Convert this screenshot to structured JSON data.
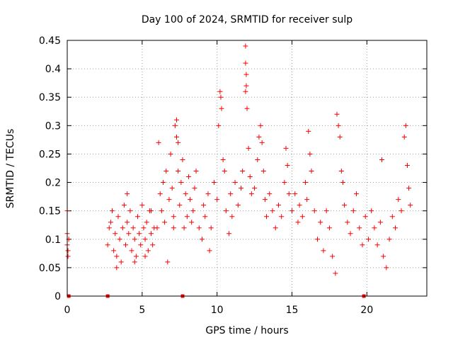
{
  "chart_data": {
    "type": "scatter",
    "title": "Day 100 of 2024, SRMTID for receiver sulp",
    "xlabel": "GPS time / hours",
    "ylabel": "SRMTID / TECUs",
    "xlim": [
      0,
      24
    ],
    "ylim": [
      0,
      0.45
    ],
    "xticks": [
      0,
      5,
      10,
      15,
      20
    ],
    "xtick_labels": [
      "0",
      "5",
      "10",
      "15",
      "20"
    ],
    "yticks": [
      0,
      0.05,
      0.1,
      0.15,
      0.2,
      0.25,
      0.3,
      0.35,
      0.4,
      0.45
    ],
    "ytick_labels": [
      "0",
      "0.05",
      "0.1",
      "0.15",
      "0.2",
      "0.25",
      "0.3",
      "0.35",
      "0.4",
      "0.45"
    ],
    "grid": true,
    "marker": "+",
    "color": "#ff0000",
    "zero_markers_x": [
      0.1,
      2.7,
      7.7,
      19.8
    ],
    "series": [
      {
        "name": "SRMTID",
        "points": [
          [
            0.0,
            0.15
          ],
          [
            0.0,
            0.11
          ],
          [
            0.0,
            0.09
          ],
          [
            0.05,
            0.08
          ],
          [
            0.05,
            0.07
          ],
          [
            0.1,
            0.1
          ],
          [
            2.7,
            0.09
          ],
          [
            2.8,
            0.12
          ],
          [
            2.9,
            0.13
          ],
          [
            3.0,
            0.15
          ],
          [
            3.1,
            0.08
          ],
          [
            3.2,
            0.11
          ],
          [
            3.3,
            0.07
          ],
          [
            3.4,
            0.14
          ],
          [
            3.5,
            0.1
          ],
          [
            3.6,
            0.06
          ],
          [
            3.7,
            0.12
          ],
          [
            3.8,
            0.16
          ],
          [
            3.9,
            0.09
          ],
          [
            4.0,
            0.13
          ],
          [
            4.1,
            0.11
          ],
          [
            4.2,
            0.15
          ],
          [
            4.3,
            0.08
          ],
          [
            4.4,
            0.12
          ],
          [
            4.5,
            0.1
          ],
          [
            4.6,
            0.07
          ],
          [
            4.7,
            0.14
          ],
          [
            4.8,
            0.11
          ],
          [
            4.9,
            0.09
          ],
          [
            5.0,
            0.16
          ],
          [
            5.1,
            0.12
          ],
          [
            5.2,
            0.1
          ],
          [
            5.3,
            0.13
          ],
          [
            5.4,
            0.08
          ],
          [
            5.5,
            0.15
          ],
          [
            5.6,
            0.11
          ],
          [
            5.7,
            0.09
          ],
          [
            5.8,
            0.12
          ],
          [
            3.3,
            0.05
          ],
          [
            4.0,
            0.18
          ],
          [
            4.5,
            0.06
          ],
          [
            5.2,
            0.07
          ],
          [
            5.6,
            0.15
          ],
          [
            6.0,
            0.12
          ],
          [
            6.1,
            0.27
          ],
          [
            6.2,
            0.18
          ],
          [
            6.3,
            0.15
          ],
          [
            6.4,
            0.2
          ],
          [
            6.5,
            0.13
          ],
          [
            6.6,
            0.22
          ],
          [
            6.7,
            0.06
          ],
          [
            6.8,
            0.17
          ],
          [
            6.9,
            0.25
          ],
          [
            7.0,
            0.19
          ],
          [
            7.1,
            0.14
          ],
          [
            7.2,
            0.3
          ],
          [
            7.3,
            0.31
          ],
          [
            7.4,
            0.22
          ],
          [
            7.5,
            0.16
          ],
          [
            7.6,
            0.2
          ],
          [
            7.7,
            0.24
          ],
          [
            7.8,
            0.12
          ],
          [
            7.9,
            0.18
          ],
          [
            8.0,
            0.14
          ],
          [
            8.1,
            0.21
          ],
          [
            8.2,
            0.17
          ],
          [
            8.3,
            0.13
          ],
          [
            8.5,
            0.19
          ],
          [
            8.6,
            0.22
          ],
          [
            8.8,
            0.12
          ],
          [
            9.0,
            0.1
          ],
          [
            9.2,
            0.14
          ],
          [
            9.4,
            0.18
          ],
          [
            9.6,
            0.12
          ],
          [
            9.8,
            0.2
          ],
          [
            10.0,
            0.17
          ],
          [
            7.3,
            0.28
          ],
          [
            7.4,
            0.27
          ],
          [
            7.1,
            0.12
          ],
          [
            8.4,
            0.15
          ],
          [
            9.1,
            0.16
          ],
          [
            9.5,
            0.08
          ],
          [
            10.1,
            0.3
          ],
          [
            10.2,
            0.36
          ],
          [
            10.25,
            0.35
          ],
          [
            10.3,
            0.33
          ],
          [
            10.4,
            0.24
          ],
          [
            10.5,
            0.22
          ],
          [
            10.6,
            0.15
          ],
          [
            10.8,
            0.11
          ],
          [
            10.9,
            0.18
          ],
          [
            11.0,
            0.14
          ],
          [
            11.2,
            0.2
          ],
          [
            11.4,
            0.16
          ],
          [
            11.6,
            0.19
          ],
          [
            11.7,
            0.22
          ],
          [
            11.9,
            0.44
          ],
          [
            11.9,
            0.41
          ],
          [
            11.95,
            0.39
          ],
          [
            11.95,
            0.37
          ],
          [
            11.9,
            0.36
          ],
          [
            12.0,
            0.33
          ],
          [
            12.1,
            0.26
          ],
          [
            12.2,
            0.21
          ],
          [
            12.3,
            0.18
          ],
          [
            12.5,
            0.19
          ],
          [
            12.7,
            0.24
          ],
          [
            12.8,
            0.28
          ],
          [
            12.9,
            0.3
          ],
          [
            13.0,
            0.27
          ],
          [
            13.1,
            0.22
          ],
          [
            13.2,
            0.17
          ],
          [
            13.3,
            0.14
          ],
          [
            13.5,
            0.18
          ],
          [
            13.7,
            0.15
          ],
          [
            13.9,
            0.12
          ],
          [
            14.1,
            0.16
          ],
          [
            14.3,
            0.14
          ],
          [
            14.5,
            0.2
          ],
          [
            14.6,
            0.26
          ],
          [
            14.7,
            0.23
          ],
          [
            14.8,
            0.18
          ],
          [
            15.0,
            0.15
          ],
          [
            15.2,
            0.18
          ],
          [
            15.4,
            0.13
          ],
          [
            15.5,
            0.16
          ],
          [
            15.7,
            0.14
          ],
          [
            15.9,
            0.2
          ],
          [
            16.0,
            0.17
          ],
          [
            16.1,
            0.29
          ],
          [
            16.2,
            0.25
          ],
          [
            16.3,
            0.22
          ],
          [
            16.5,
            0.15
          ],
          [
            16.7,
            0.1
          ],
          [
            16.9,
            0.13
          ],
          [
            17.1,
            0.08
          ],
          [
            17.3,
            0.15
          ],
          [
            17.5,
            0.12
          ],
          [
            17.7,
            0.07
          ],
          [
            17.9,
            0.04
          ],
          [
            18.0,
            0.32
          ],
          [
            18.1,
            0.3
          ],
          [
            18.2,
            0.28
          ],
          [
            18.3,
            0.22
          ],
          [
            18.4,
            0.2
          ],
          [
            18.5,
            0.16
          ],
          [
            18.7,
            0.13
          ],
          [
            18.9,
            0.11
          ],
          [
            19.1,
            0.15
          ],
          [
            19.3,
            0.18
          ],
          [
            19.5,
            0.12
          ],
          [
            19.7,
            0.09
          ],
          [
            19.9,
            0.14
          ],
          [
            20.1,
            0.1
          ],
          [
            20.3,
            0.15
          ],
          [
            20.5,
            0.12
          ],
          [
            20.7,
            0.09
          ],
          [
            20.9,
            0.13
          ],
          [
            21.0,
            0.24
          ],
          [
            21.1,
            0.07
          ],
          [
            21.3,
            0.05
          ],
          [
            21.5,
            0.1
          ],
          [
            21.7,
            0.14
          ],
          [
            21.9,
            0.12
          ],
          [
            22.1,
            0.17
          ],
          [
            22.3,
            0.15
          ],
          [
            22.5,
            0.28
          ],
          [
            22.6,
            0.3
          ],
          [
            22.7,
            0.23
          ],
          [
            22.8,
            0.19
          ],
          [
            22.9,
            0.16
          ]
        ]
      }
    ]
  }
}
